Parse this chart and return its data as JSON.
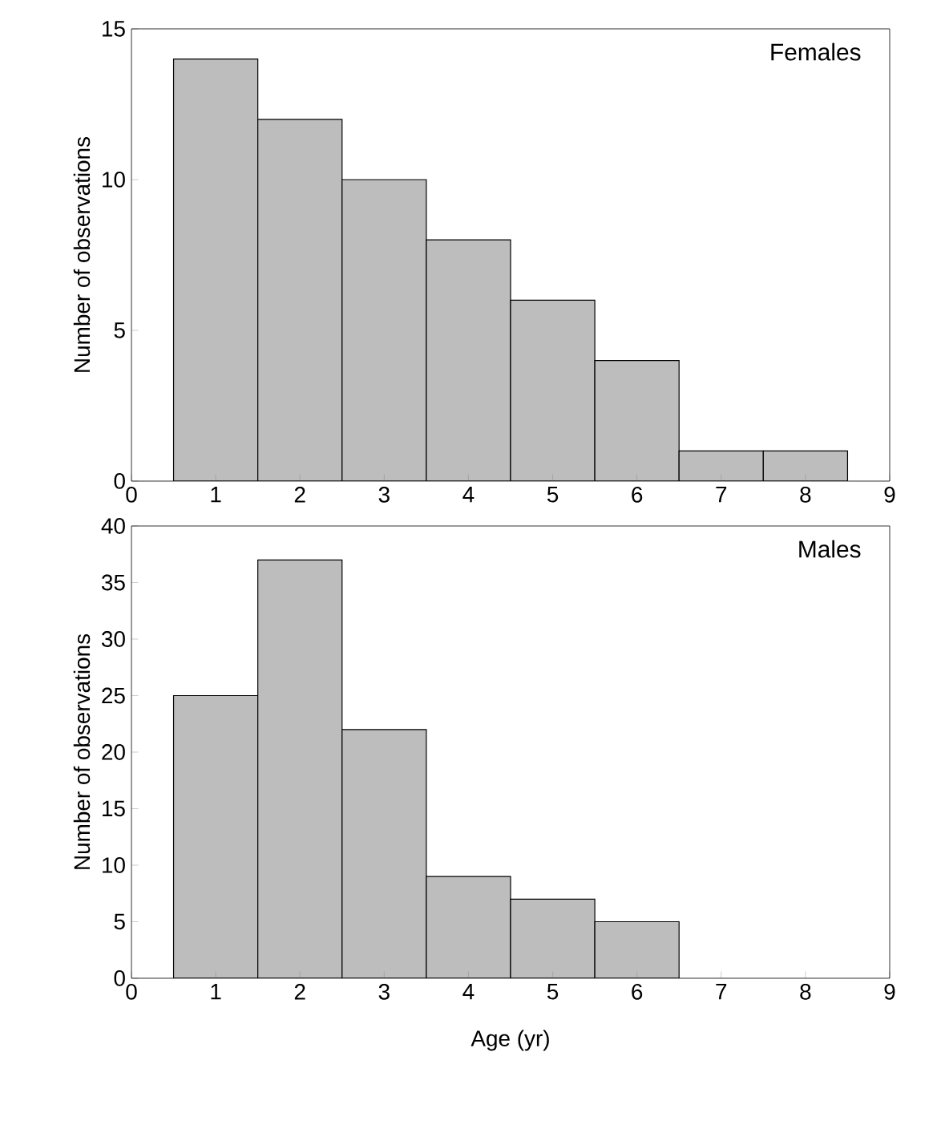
{
  "chart_data": [
    {
      "type": "histogram",
      "title": "Females",
      "ylabel": "Number of observations",
      "bins": [
        0.5,
        1.5,
        2.5,
        3.5,
        4.5,
        5.5,
        6.5,
        7.5,
        8.5
      ],
      "values": [
        14,
        12,
        10,
        8,
        6,
        4,
        1,
        1
      ],
      "color": "#bdbdbd",
      "xlim": [
        0,
        9
      ],
      "ylim": [
        0,
        15
      ],
      "xticks": [
        0,
        1,
        2,
        3,
        4,
        5,
        6,
        7,
        8,
        9
      ],
      "yticks": [
        0,
        5,
        10,
        15
      ]
    },
    {
      "type": "histogram",
      "title": "Males",
      "xlabel": "Age (yr)",
      "ylabel": "Number of observations",
      "bins": [
        0.5,
        1.5,
        2.5,
        3.5,
        4.5,
        5.5,
        6.5
      ],
      "values": [
        25,
        37,
        22,
        9,
        7,
        5
      ],
      "color": "#bdbdbd",
      "xlim": [
        0,
        9
      ],
      "ylim": [
        0,
        40
      ],
      "xticks": [
        0,
        1,
        2,
        3,
        4,
        5,
        6,
        7,
        8,
        9
      ],
      "yticks": [
        0,
        5,
        10,
        15,
        20,
        25,
        30,
        35,
        40
      ]
    }
  ]
}
